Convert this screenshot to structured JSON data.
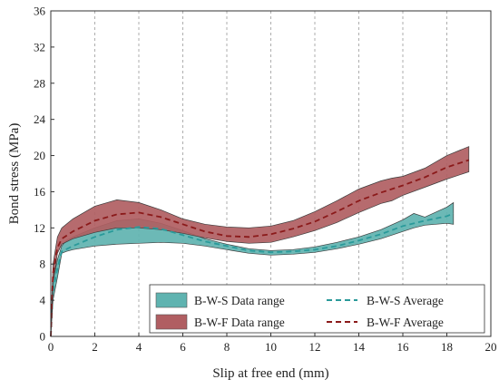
{
  "chart_data": {
    "type": "area",
    "xlabel": "Slip at free end (mm)",
    "ylabel": "Bond stress (MPa)",
    "xlim": [
      0,
      20
    ],
    "ylim": [
      0,
      36
    ],
    "xticks": [
      0,
      2,
      4,
      6,
      8,
      10,
      12,
      14,
      16,
      18,
      20
    ],
    "yticks": [
      0,
      4,
      8,
      12,
      16,
      20,
      24,
      28,
      32,
      36
    ],
    "grid": "vertical dashed lines at even x ticks",
    "legend_position": "bottom-right",
    "series": [
      {
        "name": "B-W-S Data range",
        "kind": "range",
        "color": "#5fb3b0",
        "x": [
          0,
          0.1,
          0.3,
          0.5,
          0.7,
          1,
          2,
          3,
          4,
          5,
          6,
          7,
          8,
          9,
          10,
          11,
          12,
          13,
          14,
          15,
          16,
          16.5,
          17,
          18,
          18.3
        ],
        "upper": [
          0,
          6.0,
          8.5,
          10.0,
          10.6,
          11.0,
          12.0,
          12.8,
          13.0,
          12.5,
          11.7,
          10.8,
          10.2,
          9.7,
          9.5,
          9.6,
          9.9,
          10.4,
          11.0,
          11.8,
          12.9,
          13.6,
          13.2,
          14.3,
          14.8
        ],
        "lower": [
          0,
          4.0,
          6.5,
          9.2,
          9.4,
          9.6,
          10.0,
          10.2,
          10.3,
          10.4,
          10.3,
          10.0,
          9.6,
          9.2,
          9.0,
          9.1,
          9.3,
          9.7,
          10.2,
          10.8,
          11.6,
          12.0,
          12.3,
          12.5,
          12.4
        ]
      },
      {
        "name": "B-W-F Data range",
        "kind": "range",
        "color": "#b05e62",
        "x": [
          0,
          0.1,
          0.3,
          0.5,
          1,
          2,
          3,
          4,
          5,
          6,
          7,
          8,
          9,
          10,
          11,
          12,
          13,
          14,
          15,
          15.5,
          16,
          17,
          18,
          19
        ],
        "upper": [
          0,
          8.0,
          11.0,
          12.0,
          13.0,
          14.4,
          15.1,
          14.8,
          14.0,
          13.0,
          12.4,
          12.1,
          12.0,
          12.2,
          12.8,
          13.8,
          15.0,
          16.3,
          17.2,
          17.5,
          17.7,
          18.6,
          20.0,
          21.0
        ],
        "lower": [
          0,
          6.0,
          9.2,
          10.2,
          10.8,
          11.5,
          12.0,
          12.0,
          11.8,
          11.4,
          10.9,
          10.5,
          10.3,
          10.4,
          11.0,
          11.7,
          12.6,
          13.7,
          14.7,
          15.0,
          15.6,
          16.5,
          17.4,
          18.2
        ]
      },
      {
        "name": "B-W-S Average",
        "kind": "line",
        "style": "dashed",
        "color": "#2a9a9a",
        "x": [
          0,
          0.1,
          0.3,
          0.5,
          1,
          2,
          3,
          4,
          5,
          6,
          7,
          8,
          9,
          10,
          11,
          12,
          13,
          14,
          15,
          16,
          17,
          18,
          18.3
        ],
        "y": [
          0,
          5.0,
          7.5,
          9.4,
          10.0,
          11.0,
          11.8,
          12.1,
          11.9,
          11.2,
          10.5,
          10.0,
          9.5,
          9.3,
          9.4,
          9.6,
          10.0,
          10.6,
          11.3,
          12.2,
          12.8,
          13.3,
          13.6
        ]
      },
      {
        "name": "B-W-F Average",
        "kind": "line",
        "style": "dashed",
        "color": "#8b1a1a",
        "x": [
          0,
          0.1,
          0.3,
          0.5,
          1,
          2,
          3,
          4,
          5,
          6,
          7,
          8,
          9,
          10,
          11,
          12,
          13,
          14,
          15,
          16,
          17,
          18,
          19
        ],
        "y": [
          0,
          7.0,
          9.8,
          10.8,
          11.6,
          12.8,
          13.5,
          13.7,
          13.2,
          12.4,
          11.6,
          11.1,
          11.0,
          11.3,
          11.9,
          12.7,
          13.8,
          15.0,
          15.9,
          16.7,
          17.6,
          18.7,
          19.5
        ]
      }
    ]
  }
}
